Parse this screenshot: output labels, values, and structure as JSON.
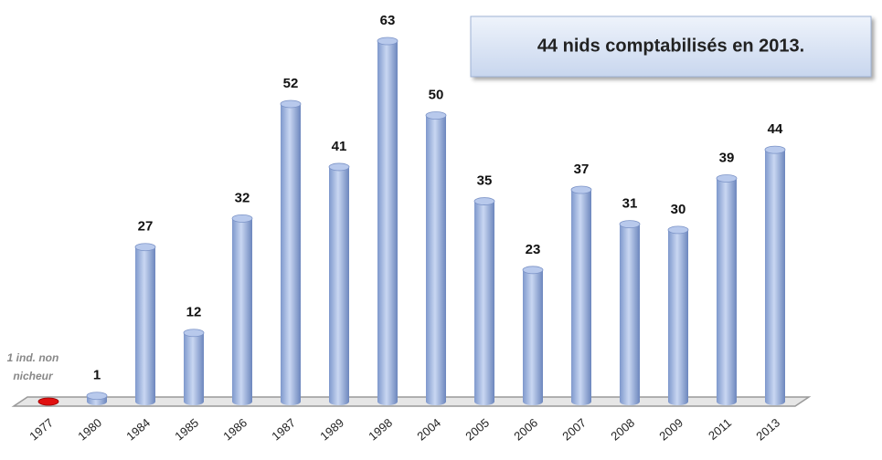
{
  "chart_data": {
    "type": "bar",
    "title": "44 nids comptabilisés en 2013.",
    "annotation": [
      "1 ind. non",
      "nicheur"
    ],
    "categories": [
      "1977",
      "1980",
      "1984",
      "1985",
      "1986",
      "1987",
      "1989",
      "1998",
      "2004",
      "2005",
      "2006",
      "2007",
      "2008",
      "2009",
      "2011",
      "2013"
    ],
    "values": [
      0,
      1,
      27,
      12,
      32,
      52,
      41,
      63,
      50,
      35,
      23,
      37,
      31,
      30,
      39,
      44
    ],
    "color": "#8faade",
    "highlight_color": "#e01010"
  }
}
